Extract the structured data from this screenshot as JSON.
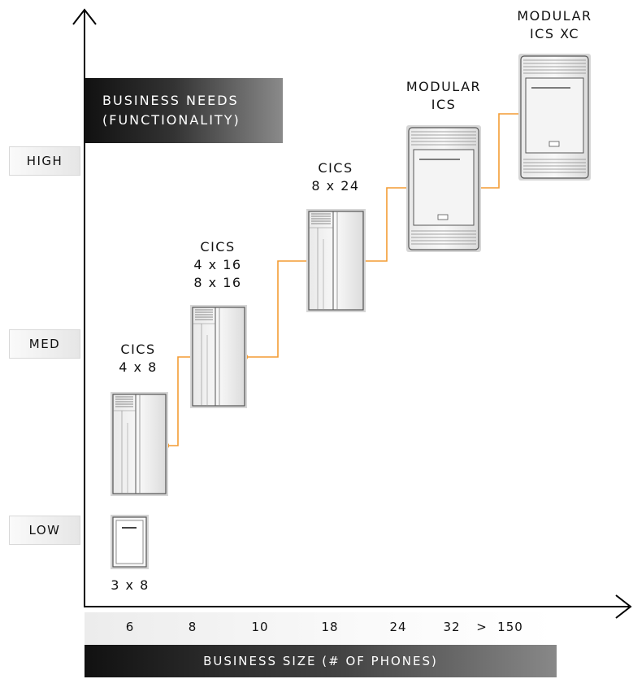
{
  "y_axis": {
    "title_line1": "BUSINESS NEEDS",
    "title_line2": "(FUNCTIONALITY)",
    "levels": [
      "HIGH",
      "MED",
      "LOW"
    ]
  },
  "x_axis": {
    "title": "BUSINESS SIZE (# OF PHONES)",
    "ticks": [
      "6",
      "8",
      "10",
      "18",
      "24",
      "32",
      ">",
      "150"
    ]
  },
  "products": [
    {
      "lines": [
        "3 x 8"
      ]
    },
    {
      "lines": [
        "CICS",
        "4 x 8"
      ]
    },
    {
      "lines": [
        "CICS",
        "4 x 16",
        "8 x 16"
      ]
    },
    {
      "lines": [
        "CICS",
        "8 x 24"
      ]
    },
    {
      "lines": [
        "MODULAR",
        "ICS"
      ]
    },
    {
      "lines": [
        "MODULAR",
        "ICS XC"
      ]
    }
  ],
  "colors": {
    "path": "#f39c34",
    "axis": "#000000"
  },
  "icons": [
    "unit-3x8-icon",
    "cics-4x8-icon",
    "cics-8x16-icon",
    "cics-8x24-icon",
    "modular-ics-icon",
    "modular-ics-xc-icon"
  ]
}
